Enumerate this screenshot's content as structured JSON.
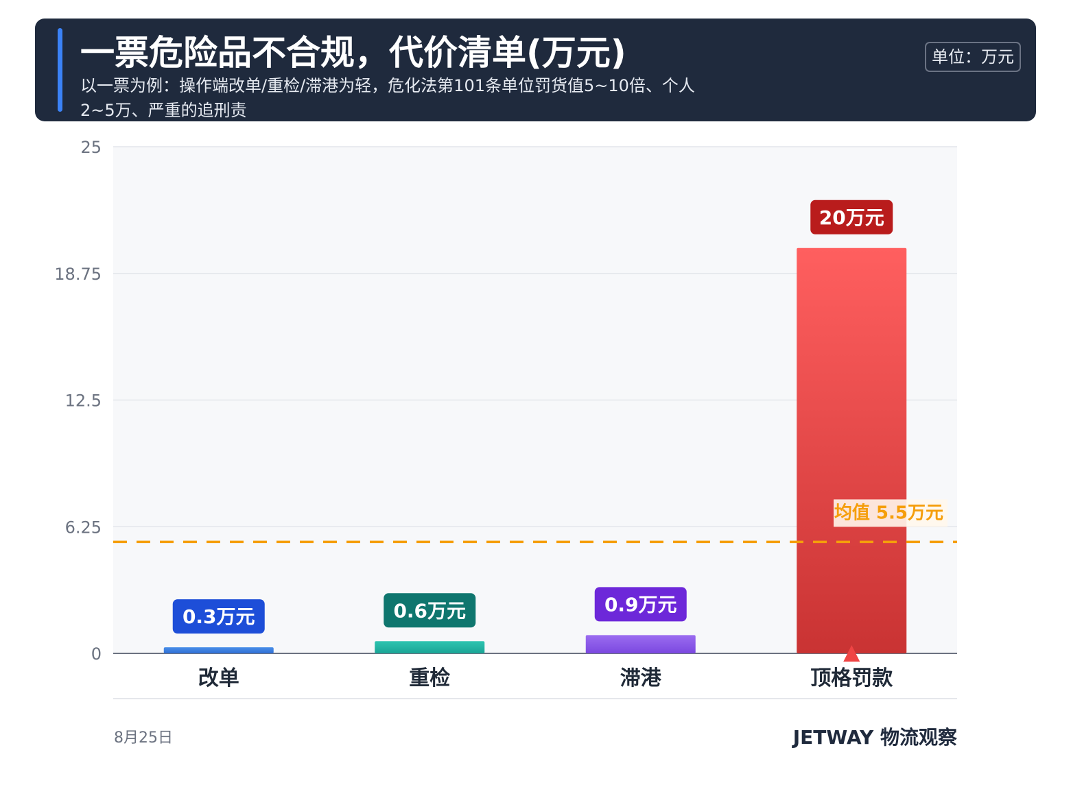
{
  "header": {
    "title": "一票危险品不合规，代价清单(万元)",
    "subtitle": "以一票为例：操作端改单/重检/滞港为轻，危化法第101条单位罚货值5~10倍、个人2~5万、严重的追刑责",
    "unit": "单位：万元"
  },
  "chart_data": {
    "type": "bar",
    "categories": [
      "改单",
      "重检",
      "滞港",
      "顶格罚款"
    ],
    "values": [
      0.3,
      0.6,
      0.9,
      20
    ],
    "value_labels": [
      "0.3万元",
      "0.6万元",
      "0.9万元",
      "20万元"
    ],
    "colors": [
      [
        "#4a8fe8",
        "#2f6fd6"
      ],
      [
        "#2ec4b0",
        "#1aa596"
      ],
      [
        "#9b6cf0",
        "#7b48e0"
      ],
      [
        "#ff5f5f",
        "#c93333"
      ]
    ],
    "label_colors": [
      "#1d4ed8",
      "#0f766e",
      "#6d28d9",
      "#b91c1c"
    ],
    "ylim": [
      0,
      25
    ],
    "yticks": [
      0,
      6.25,
      12.5,
      18.75,
      25
    ],
    "ytick_labels": [
      "0",
      "6.25",
      "12.5",
      "18.75",
      "25"
    ],
    "mean": {
      "value": 5.5,
      "label": "均值 5.5万元",
      "color": "#f59e0b"
    },
    "grid": true
  },
  "footer": {
    "date": "8月25日",
    "brand": "JETWAY 物流观察"
  }
}
